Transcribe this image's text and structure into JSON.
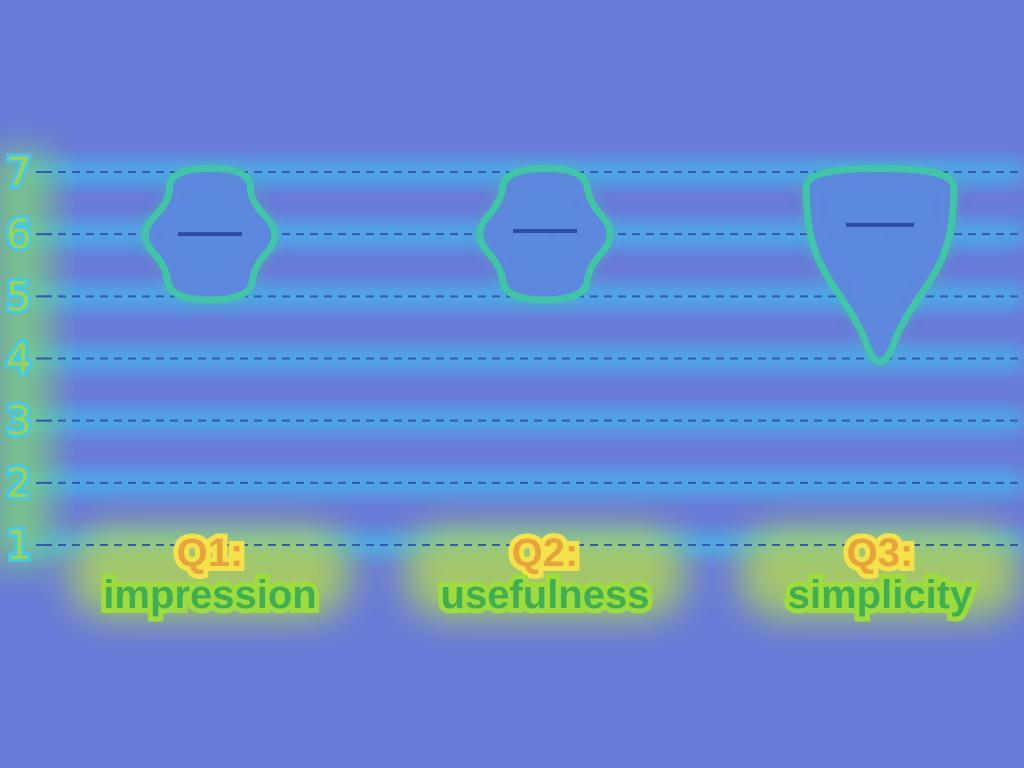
{
  "colors": {
    "background": "#6a7bd9",
    "glow": "#3cc3f0",
    "violin_fill": "#5d86df",
    "violin_edge": "#40c8a4",
    "median": "#2e4ba8",
    "grid": "#3a56b0"
  },
  "chart_data": {
    "type": "violin",
    "ylim": [
      1,
      7
    ],
    "yticks": [
      "1",
      "2",
      "3",
      "4",
      "5",
      "6",
      "7"
    ],
    "grid": true,
    "categories": [
      {
        "line1": "Q1:",
        "line2": "impression",
        "min": 5,
        "max": 7,
        "median": 6.0,
        "profile": [
          [
            5,
            0.42
          ],
          [
            5.5,
            0.46
          ],
          [
            6,
            0.78
          ],
          [
            6.5,
            0.42
          ],
          [
            7,
            0.42
          ]
        ]
      },
      {
        "line1": "Q2:",
        "line2": "usefulness",
        "min": 5,
        "max": 7,
        "median": 6.05,
        "profile": [
          [
            5,
            0.42
          ],
          [
            5.5,
            0.46
          ],
          [
            6,
            0.78
          ],
          [
            6.5,
            0.46
          ],
          [
            7,
            0.42
          ]
        ]
      },
      {
        "line1": "Q3:",
        "line2": "simplicity",
        "min": 4,
        "max": 7,
        "median": 6.15,
        "profile": [
          [
            4,
            0.05
          ],
          [
            4.5,
            0.18
          ],
          [
            5,
            0.4
          ],
          [
            5.5,
            0.64
          ],
          [
            6,
            0.76
          ],
          [
            6.5,
            0.8
          ],
          [
            7,
            0.8
          ]
        ]
      }
    ]
  }
}
